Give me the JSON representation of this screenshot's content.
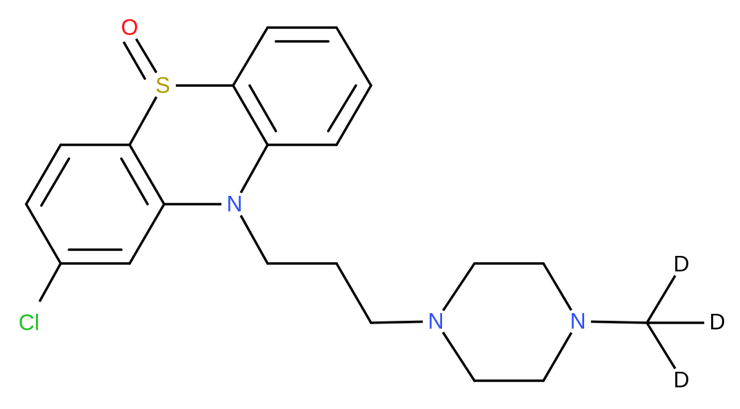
{
  "atoms": [
    "O",
    "S",
    "N",
    "Cl",
    "N",
    "N",
    "D",
    "D",
    "D"
  ]
}
